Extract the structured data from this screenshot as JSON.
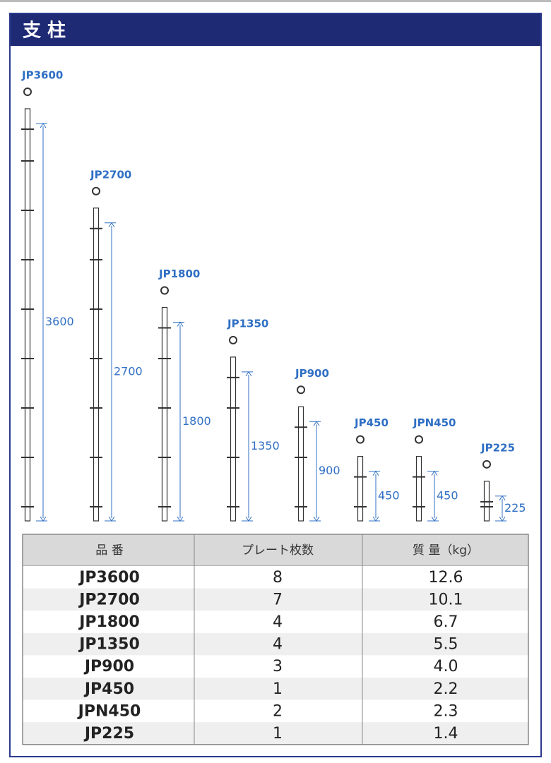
{
  "header": {
    "title": "支 柱"
  },
  "posts": [
    {
      "label": "JP3600",
      "dimension": 3600
    },
    {
      "label": "JP2700",
      "dimension": 2700
    },
    {
      "label": "JP1800",
      "dimension": 1800
    },
    {
      "label": "JP1350",
      "dimension": 1350
    },
    {
      "label": "JP900",
      "dimension": 900
    },
    {
      "label": "JP450",
      "dimension": 450
    },
    {
      "label": "JPN450",
      "dimension": 450
    },
    {
      "label": "JP225",
      "dimension": 225
    }
  ],
  "table": {
    "columns": [
      "品 番",
      "プレート枚数",
      "質 量（kg）"
    ],
    "rows": [
      [
        "JP3600",
        "8",
        "12.6"
      ],
      [
        "JP2700",
        "7",
        "10.1"
      ],
      [
        "JP1800",
        "4",
        "6.7"
      ],
      [
        "JP1350",
        "4",
        "5.5"
      ],
      [
        "JP900",
        "3",
        "4.0"
      ],
      [
        "JP450",
        "1",
        "2.2"
      ],
      [
        "JPN450",
        "2",
        "2.3"
      ],
      [
        "JP225",
        "1",
        "1.4"
      ]
    ]
  }
}
